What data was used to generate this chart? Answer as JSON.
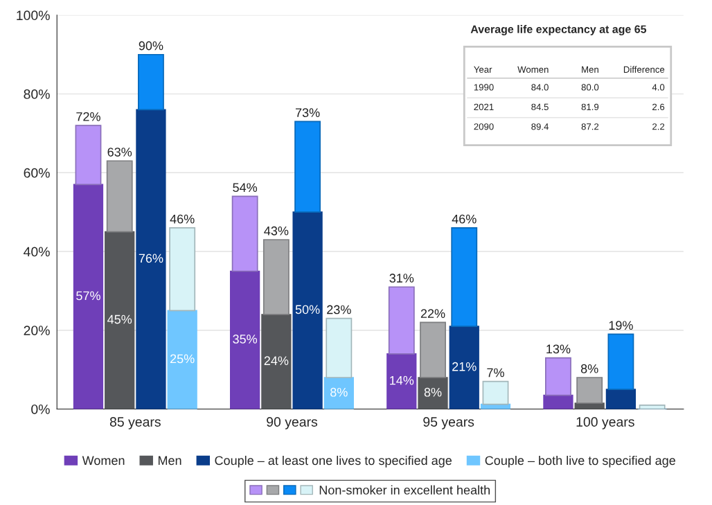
{
  "chart_data": {
    "type": "bar",
    "categories": [
      "85 years",
      "90 years",
      "95 years",
      "100 years"
    ],
    "ylim": [
      0,
      100
    ],
    "yticks": [
      {
        "value": 0,
        "label": "0%"
      },
      {
        "value": 20,
        "label": "20%"
      },
      {
        "value": 40,
        "label": "40%"
      },
      {
        "value": 60,
        "label": "60%"
      },
      {
        "value": 80,
        "label": "80%"
      },
      {
        "value": 100,
        "label": "100%"
      }
    ],
    "grid": "y",
    "legend": "bottom",
    "series": [
      {
        "name": "Women",
        "color": "#6f3fb8",
        "values": [
          57,
          35,
          14,
          3.5
        ],
        "value_labels": [
          "57%",
          "35%",
          "14%",
          null
        ]
      },
      {
        "color": "#b792f7",
        "values": [
          15,
          19,
          17,
          9.5
        ],
        "base": [
          57,
          35,
          14,
          3.5
        ],
        "value_labels": [
          "72%",
          "54%",
          "31%",
          "13%"
        ]
      },
      {
        "name": "Men",
        "color": "#55575a",
        "values": [
          45,
          24,
          8,
          1.5
        ],
        "value_labels": [
          "45%",
          "24%",
          "8%",
          null
        ]
      },
      {
        "color": "#a7a8aa",
        "values": [
          18,
          19,
          14,
          6.5
        ],
        "base": [
          45,
          24,
          8,
          1.5
        ],
        "value_labels": [
          "63%",
          "43%",
          "22%",
          "8%"
        ]
      },
      {
        "name": "Couple – at least one lives to specified age",
        "color": "#0a3d8a",
        "values": [
          76,
          50,
          21,
          5
        ],
        "value_labels": [
          "76%",
          "50%",
          "21%",
          null
        ]
      },
      {
        "color": "#0a8af5",
        "values": [
          14,
          23,
          25,
          14
        ],
        "base": [
          76,
          50,
          21,
          5
        ],
        "value_labels": [
          "90%",
          "73%",
          "46%",
          "19%"
        ]
      },
      {
        "name": "Couple – both live to specified age",
        "color": "#6fc6ff",
        "values": [
          25,
          8,
          1.2,
          null
        ],
        "value_labels": [
          "25%",
          "8%",
          null,
          null
        ]
      },
      {
        "name": "Non-smoker in excellent health",
        "color": "#d8f3f7",
        "values": [
          21,
          15,
          5.8,
          1
        ],
        "base": [
          25,
          8,
          1.2,
          0
        ],
        "value_labels": [
          "46%",
          "23%",
          "7%",
          null
        ]
      }
    ],
    "annotations": [
      "Average life expectancy at age 65",
      "Year",
      "Women",
      "Men",
      "Difference",
      "1990",
      "84.0",
      "80.0",
      "4.0",
      "2021",
      "84.5",
      "81.9",
      "2.6",
      "2090",
      "89.4",
      "87.2",
      "2.2"
    ]
  }
}
